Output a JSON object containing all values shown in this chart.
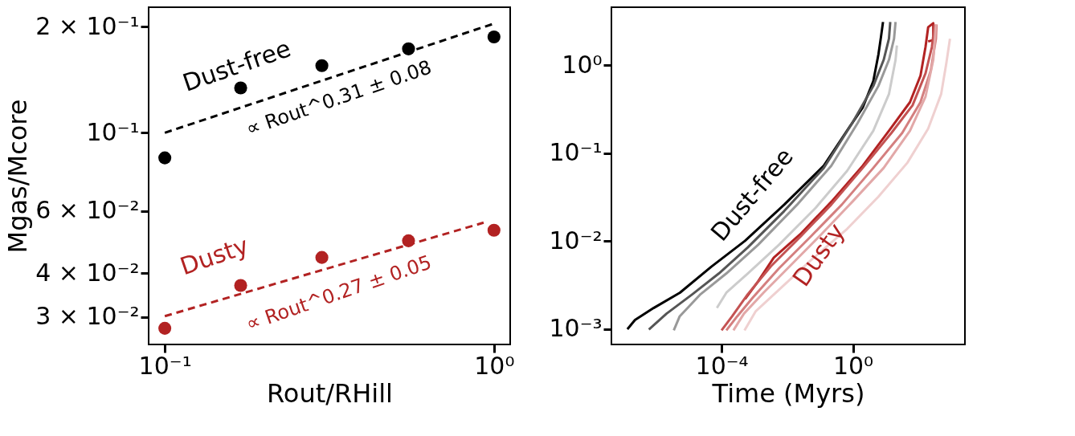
{
  "chart_data": [
    {
      "type": "scatter",
      "xlabel": "Rout/RHill",
      "ylabel": "Mgas/Mcore",
      "log": "xy",
      "xlim": [
        0.0893,
        1.12
      ],
      "ylim": [
        0.0251,
        0.227
      ],
      "xticks": [
        {
          "value": 0.1,
          "label": "10⁻¹"
        },
        {
          "value": 1,
          "label": "10⁰"
        }
      ],
      "yticks": [
        {
          "value": 0.03,
          "label": "3 × 10⁻²"
        },
        {
          "value": 0.04,
          "label": "4 × 10⁻²"
        },
        {
          "value": 0.06,
          "label": "6 × 10⁻²"
        },
        {
          "value": 0.1,
          "label": "10⁻¹"
        },
        {
          "value": 0.2,
          "label": "2 × 10⁻¹"
        }
      ],
      "series": [
        {
          "type": "scatter",
          "marker": "circle",
          "color": "#000000",
          "x": [
            0.1,
            0.17,
            0.3,
            0.55,
            1.0
          ],
          "values": [
            0.0849,
            0.134,
            0.155,
            0.173,
            0.187
          ]
        },
        {
          "type": "scatter",
          "marker": "circle",
          "color": "#b22222",
          "x": [
            0.1,
            0.17,
            0.3,
            0.55,
            1.0
          ],
          "values": [
            0.0279,
            0.0369,
            0.0443,
            0.0494,
            0.0529
          ]
        },
        {
          "type": "line",
          "line_style": "dashed",
          "color": "#000000",
          "x": [
            0.1,
            1.0
          ],
          "values": [
            0.1,
            0.204
          ]
        },
        {
          "type": "line",
          "line_style": "dashed",
          "color": "#b22222",
          "x": [
            0.1,
            0.93
          ],
          "values": [
            0.0302,
            0.0556
          ]
        }
      ],
      "annotations": [
        "Dust-free",
        "∝ Rout^0.31 ± 0.08",
        "Dusty",
        "∝ Rout^0.27 ± 0.05"
      ]
    },
    {
      "type": "line",
      "xlabel": "Time (Myrs)",
      "log": "xy",
      "xlim": [
        4.4e-08,
        2600
      ],
      "ylim": [
        0.00067,
        4.56
      ],
      "xticks": [
        {
          "value": 0.0001,
          "label": "10⁻⁴"
        },
        {
          "value": 1,
          "label": "10⁰"
        }
      ],
      "yticks": [
        {
          "value": 0.001,
          "label": "10⁻³"
        },
        {
          "value": 0.01,
          "label": "10⁻²"
        },
        {
          "value": 0.1,
          "label": "10⁻¹"
        },
        {
          "value": 1,
          "label": "10⁰"
        }
      ],
      "series": [
        {
          "color": "#000000",
          "x": [
            1.35e-07,
            2.3e-07,
            8.5e-07,
            5.4e-06,
            4.8e-05,
            0.00052,
            0.0081,
            0.13,
            0.8,
            2.0,
            4.2,
            6.0,
            7.2,
            8.3
          ],
          "values": [
            0.001,
            0.00127,
            0.00174,
            0.0026,
            0.0051,
            0.0101,
            0.026,
            0.072,
            0.2,
            0.33,
            0.66,
            1.32,
            2.1,
            3.1
          ]
        },
        {
          "color": "#555555",
          "x": [
            6.1e-07,
            2.1e-06,
            1.3e-05,
            8.3e-05,
            0.00063,
            0.0081,
            0.13,
            0.96,
            4.2,
            8.7,
            12.6,
            13.8
          ],
          "values": [
            0.00099,
            0.0015,
            0.0025,
            0.0043,
            0.0085,
            0.022,
            0.068,
            0.22,
            0.58,
            1.15,
            2.0,
            3.1
          ]
        },
        {
          "color": "#999999",
          "x": [
            3.5e-06,
            5.3e-06,
            2.3e-05,
            0.00014,
            0.0013,
            0.02,
            0.22,
            1.4,
            6.0,
            12.6,
            18,
            20
          ],
          "values": [
            0.00097,
            0.0014,
            0.0025,
            0.0043,
            0.0091,
            0.026,
            0.072,
            0.22,
            0.58,
            1.15,
            2.0,
            3.1
          ]
        },
        {
          "color": "#cccccc",
          "x": [
            7.2e-05,
            0.00014,
            0.00063,
            0.0056,
            0.074,
            0.67,
            4.2,
            12.6,
            20,
            22
          ],
          "values": [
            0.00174,
            0.0026,
            0.0043,
            0.0091,
            0.024,
            0.063,
            0.18,
            0.47,
            1.15,
            1.68
          ]
        },
        {
          "color": "#b22222",
          "x": [
            0.00052,
            0.0013,
            0.0039,
            0.025,
            0.22,
            2.0,
            12.6,
            55,
            115,
            164,
            197,
            282,
            282,
            197
          ],
          "values": [
            0.0022,
            0.0035,
            0.0065,
            0.012,
            0.028,
            0.072,
            0.18,
            0.38,
            0.76,
            1.62,
            2.7,
            3.0,
            1.93,
            1.86
          ]
        },
        {
          "color": "#c45252",
          "x": [
            0.0001,
            0.00021,
            0.00063,
            0.0032,
            0.025,
            0.22,
            2.0,
            15,
            66,
            164,
            257,
            310
          ],
          "values": [
            0.00097,
            0.0014,
            0.0025,
            0.0052,
            0.0112,
            0.026,
            0.068,
            0.17,
            0.35,
            0.81,
            1.62,
            2.9
          ]
        },
        {
          "color": "#d47f7f",
          "x": [
            0.00014,
            0.0003,
            0.00091,
            0.0056,
            0.051,
            0.46,
            4.2,
            32,
            115,
            237,
            340,
            355
          ],
          "values": [
            0.00097,
            0.0014,
            0.0023,
            0.0049,
            0.0112,
            0.026,
            0.068,
            0.17,
            0.38,
            0.87,
            2.0,
            2.9
          ]
        },
        {
          "color": "#e2a8a8",
          "x": [
            0.00023,
            0.00048,
            0.0019,
            0.012,
            0.11,
            0.96,
            8.7,
            55,
            164,
            282,
            340
          ],
          "values": [
            0.00097,
            0.0015,
            0.0026,
            0.0052,
            0.012,
            0.028,
            0.068,
            0.18,
            0.44,
            1.15,
            2.9
          ]
        },
        {
          "color": "#efd0d0",
          "x": [
            0.0005,
            0.0011,
            0.0056,
            0.051,
            0.67,
            6.0,
            46,
            197,
            490,
            710,
            910
          ],
          "values": [
            0.00097,
            0.0016,
            0.0028,
            0.006,
            0.0138,
            0.032,
            0.078,
            0.19,
            0.47,
            1.07,
            2.0
          ]
        }
      ],
      "annotations": [
        "Dust-free",
        "Dusty"
      ]
    }
  ]
}
